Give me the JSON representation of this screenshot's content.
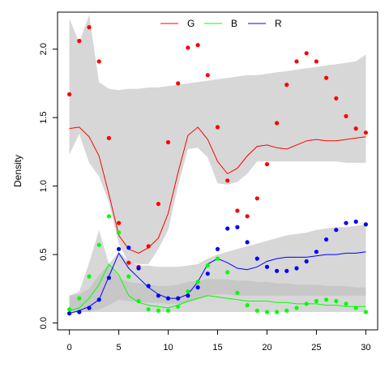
{
  "chart_data": {
    "type": "scatter",
    "title": "",
    "xlabel": "",
    "ylabel": "Density",
    "xlim": [
      -1.2,
      31.2
    ],
    "ylim": [
      -0.05,
      2.27
    ],
    "x_ticks": [
      0,
      5,
      10,
      15,
      20,
      25,
      30
    ],
    "y_ticks": [
      0.0,
      0.5,
      1.0,
      1.5,
      2.0
    ],
    "legend_position": "top-center",
    "grid": false,
    "legend": [
      {
        "name": "G",
        "color": "#FF0000"
      },
      {
        "name": "B",
        "color": "#00FF00"
      },
      {
        "name": "R",
        "color": "#0000FF"
      }
    ],
    "series": [
      {
        "name": "G",
        "color": "#FF0000",
        "points": [
          1.67,
          2.06,
          2.16,
          1.91,
          1.35,
          0.73,
          0.44,
          0.41,
          0.56,
          0.87,
          1.32,
          1.75,
          2.01,
          2.03,
          1.81,
          1.43,
          1.04,
          0.82,
          0.78,
          0.91,
          1.16,
          1.46,
          1.74,
          1.91,
          1.97,
          1.91,
          1.79,
          1.64,
          1.51,
          1.42,
          1.39
        ],
        "line": [
          1.42,
          1.43,
          1.36,
          1.22,
          0.94,
          0.64,
          0.54,
          0.51,
          0.55,
          0.62,
          0.8,
          1.1,
          1.37,
          1.43,
          1.34,
          1.18,
          1.09,
          1.13,
          1.22,
          1.29,
          1.3,
          1.28,
          1.27,
          1.3,
          1.33,
          1.34,
          1.33,
          1.33,
          1.34,
          1.35,
          1.36
        ],
        "band_upper": [
          2.22,
          2.05,
          2.25,
          1.76,
          1.71,
          1.7,
          1.71,
          1.71,
          1.72,
          1.72,
          1.73,
          1.74,
          1.75,
          1.76,
          1.77,
          1.78,
          1.79,
          1.8,
          1.81,
          1.81,
          1.82,
          1.83,
          1.84,
          1.85,
          1.86,
          1.87,
          1.88,
          1.89,
          1.9,
          1.91,
          1.96
        ],
        "band_lower": [
          1.23,
          1.38,
          1.17,
          1.07,
          0.88,
          0.58,
          0.44,
          0.43,
          0.43,
          0.54,
          0.68,
          1.0,
          1.27,
          1.28,
          1.21,
          1.02,
          1.01,
          1.03,
          1.09,
          1.18,
          1.18,
          1.18,
          1.18,
          1.18,
          1.18,
          1.18,
          1.18,
          1.18,
          1.17,
          1.17,
          1.17
        ]
      },
      {
        "name": "B",
        "color": "#00FF00",
        "points": [
          0.1,
          0.18,
          0.34,
          0.57,
          0.78,
          0.66,
          0.34,
          0.16,
          0.1,
          0.09,
          0.09,
          0.12,
          0.23,
          0.3,
          0.42,
          0.47,
          0.37,
          0.22,
          0.13,
          0.09,
          0.08,
          0.08,
          0.09,
          0.11,
          0.14,
          0.16,
          0.17,
          0.16,
          0.14,
          0.11,
          0.08
        ],
        "line": [
          0.09,
          0.11,
          0.18,
          0.28,
          0.43,
          0.35,
          0.2,
          0.15,
          0.13,
          0.12,
          0.11,
          0.13,
          0.16,
          0.18,
          0.2,
          0.19,
          0.18,
          0.17,
          0.16,
          0.16,
          0.16,
          0.15,
          0.15,
          0.14,
          0.14,
          0.14,
          0.13,
          0.13,
          0.12,
          0.12,
          0.12
        ],
        "band_upper": [
          0.2,
          0.23,
          0.44,
          0.68,
          0.43,
          0.33,
          0.3,
          0.29,
          0.28,
          0.27,
          0.27,
          0.28,
          0.3,
          0.31,
          0.32,
          0.32,
          0.32,
          0.31,
          0.31,
          0.3,
          0.3,
          0.29,
          0.29,
          0.28,
          0.28,
          0.28,
          0.27,
          0.27,
          0.27,
          0.26,
          0.26
        ],
        "band_lower": [
          0.07,
          0.08,
          0.08,
          0.08,
          0.08,
          0.08,
          0.08,
          0.08,
          0.08,
          0.08,
          0.08,
          0.08,
          0.08,
          0.08,
          0.08,
          0.08,
          0.08,
          0.08,
          0.08,
          0.08,
          0.08,
          0.08,
          0.08,
          0.08,
          0.08,
          0.08,
          0.08,
          0.08,
          0.08,
          0.08,
          0.08
        ]
      },
      {
        "name": "R",
        "color": "#0000FF",
        "points": [
          0.07,
          0.08,
          0.11,
          0.17,
          0.33,
          0.54,
          0.55,
          0.4,
          0.27,
          0.2,
          0.18,
          0.18,
          0.2,
          0.26,
          0.36,
          0.54,
          0.69,
          0.7,
          0.59,
          0.47,
          0.41,
          0.38,
          0.38,
          0.4,
          0.45,
          0.52,
          0.61,
          0.68,
          0.73,
          0.74,
          0.72
        ],
        "line": [
          0.07,
          0.09,
          0.12,
          0.17,
          0.34,
          0.51,
          0.4,
          0.33,
          0.26,
          0.21,
          0.18,
          0.18,
          0.21,
          0.3,
          0.43,
          0.47,
          0.44,
          0.4,
          0.39,
          0.41,
          0.45,
          0.47,
          0.48,
          0.48,
          0.48,
          0.49,
          0.5,
          0.5,
          0.51,
          0.51,
          0.52
        ],
        "band_upper": [
          0.2,
          0.21,
          0.25,
          0.35,
          0.43,
          0.52,
          0.45,
          0.42,
          0.42,
          0.41,
          0.41,
          0.41,
          0.42,
          0.43,
          0.47,
          0.5,
          0.52,
          0.54,
          0.56,
          0.58,
          0.6,
          0.62,
          0.64,
          0.65,
          0.66,
          0.68,
          0.69,
          0.7,
          0.7,
          0.71,
          0.72
        ],
        "band_lower": [
          0.07,
          0.08,
          0.08,
          0.1,
          0.13,
          0.17,
          0.16,
          0.15,
          0.15,
          0.15,
          0.14,
          0.14,
          0.15,
          0.17,
          0.2,
          0.21,
          0.21,
          0.2,
          0.2,
          0.2,
          0.2,
          0.2,
          0.2,
          0.2,
          0.2,
          0.2,
          0.2,
          0.2,
          0.2,
          0.2,
          0.2
        ]
      }
    ]
  }
}
